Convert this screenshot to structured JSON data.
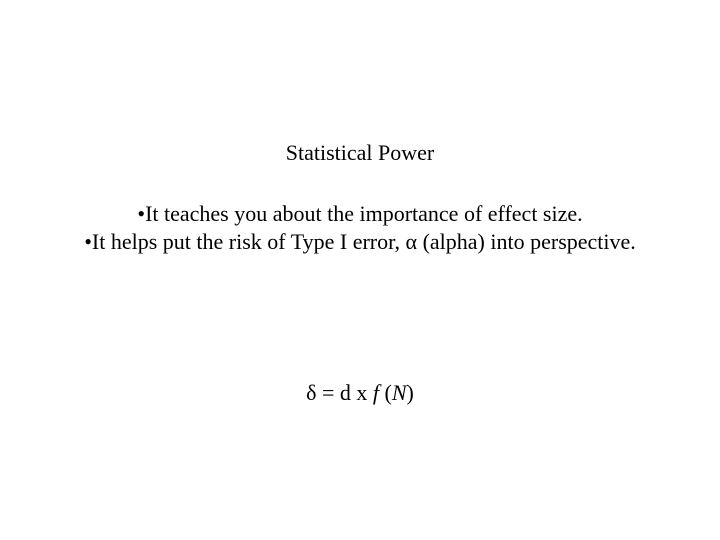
{
  "title": "Statistical Power",
  "bullets": [
    "It teaches you about the importance of effect size.",
    "It helps put the risk of Type I error, α (alpha) into perspective."
  ],
  "bullet_marker": "•",
  "formula": {
    "delta": "δ",
    "equals": " = ",
    "d": "d",
    "times": "   x   ",
    "f": "f",
    "open": " (",
    "N": "N",
    "close": ")"
  },
  "colors": {
    "background": "#ffffff",
    "text": "#000000"
  },
  "fontsize_pt": 22
}
